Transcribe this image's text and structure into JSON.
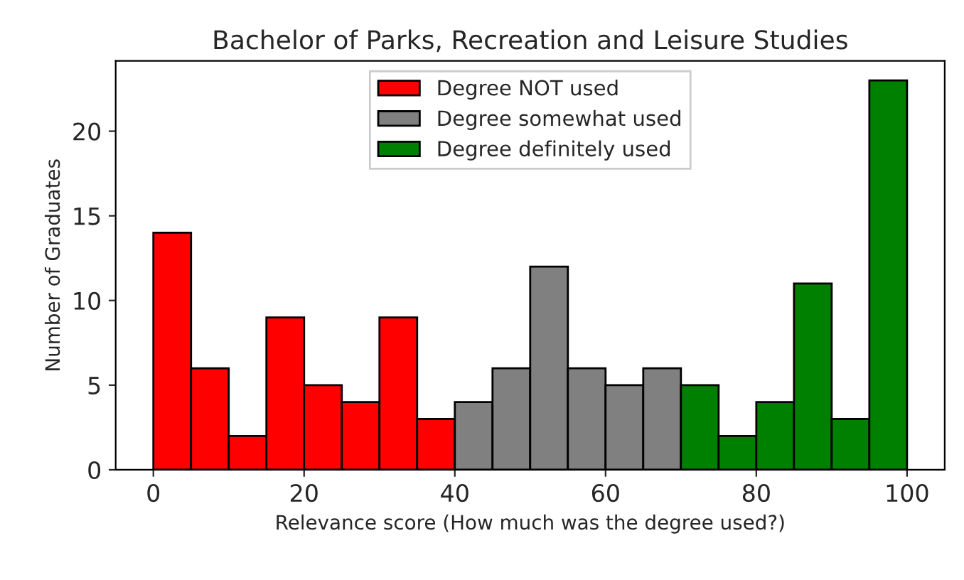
{
  "chart_data": {
    "type": "histogram",
    "title": "Bachelor of Parks, Recreation and Leisure Studies",
    "xlabel": "Relevance score (How much was the degree used?)",
    "ylabel": "Number of Graduates",
    "bins": [
      0,
      5,
      10,
      15,
      20,
      25,
      30,
      35,
      40,
      45,
      50,
      55,
      60,
      65,
      70,
      75,
      80,
      85,
      90,
      95,
      100
    ],
    "series": [
      {
        "name": "Degree NOT used",
        "color": "#ff0000",
        "values": [
          14,
          6,
          2,
          9,
          5,
          4,
          9,
          3,
          null,
          null,
          null,
          null,
          null,
          null,
          null,
          null,
          null,
          null,
          null,
          null
        ]
      },
      {
        "name": "Degree somewhat used",
        "color": "#808080",
        "values": [
          null,
          null,
          null,
          null,
          null,
          null,
          null,
          null,
          4,
          6,
          12,
          6,
          5,
          6,
          null,
          null,
          null,
          null,
          null,
          null
        ]
      },
      {
        "name": "Degree definitely used",
        "color": "#008000",
        "values": [
          null,
          null,
          null,
          null,
          null,
          null,
          null,
          null,
          null,
          null,
          null,
          null,
          null,
          null,
          5,
          2,
          4,
          11,
          3,
          23
        ]
      }
    ],
    "xlim": [
      -5,
      105
    ],
    "ylim": [
      0,
      24.15
    ],
    "xticks": [
      0,
      20,
      40,
      60,
      80,
      100
    ],
    "yticks": [
      0,
      5,
      10,
      15,
      20
    ],
    "grid": false,
    "legend": "top"
  }
}
